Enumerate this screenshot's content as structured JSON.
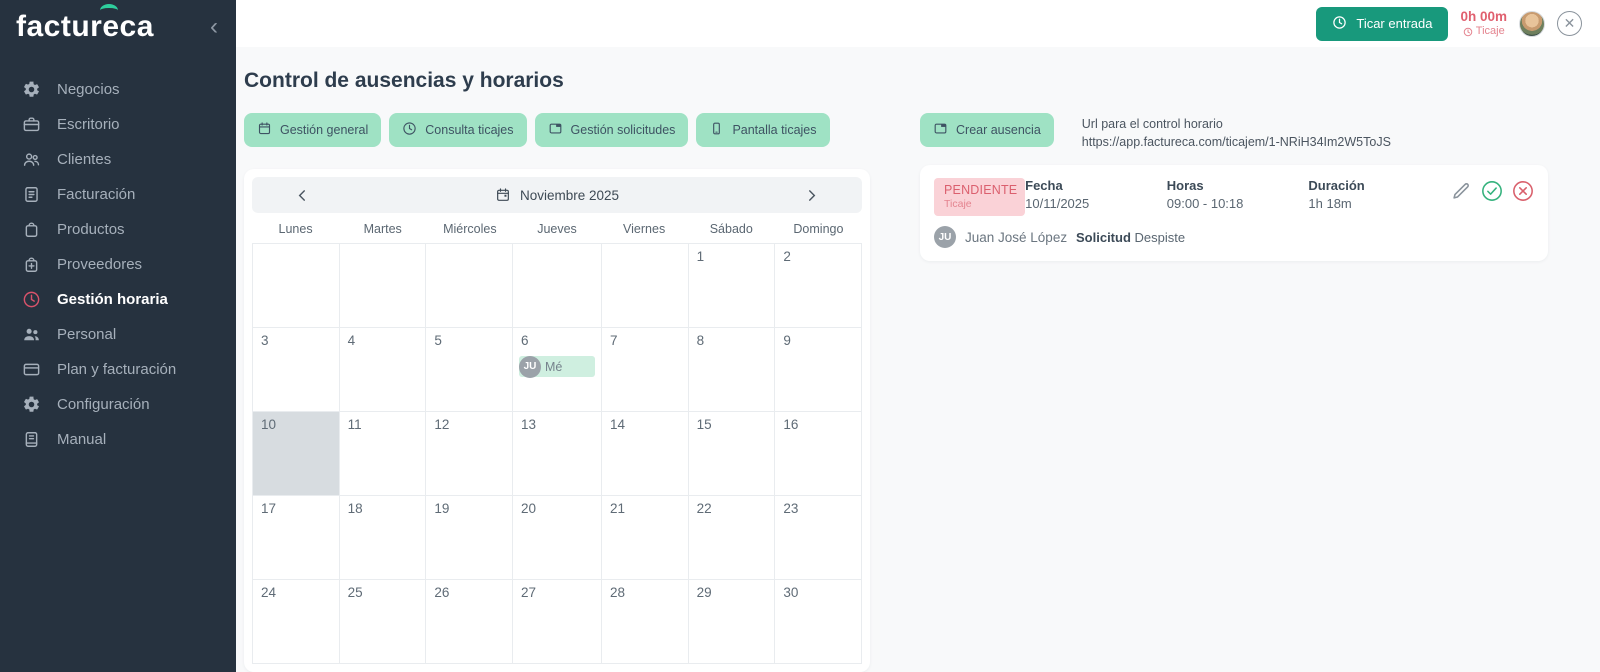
{
  "app": {
    "logo_part1": "factur",
    "logo_accent_letter": "e",
    "logo_part2": "ca"
  },
  "sidebar": {
    "items": [
      {
        "label": "Negocios",
        "icon": "gear-icon",
        "active": false
      },
      {
        "label": "Escritorio",
        "icon": "briefcase-icon",
        "active": false
      },
      {
        "label": "Clientes",
        "icon": "people-icon",
        "active": false
      },
      {
        "label": "Facturación",
        "icon": "invoice-icon",
        "active": false
      },
      {
        "label": "Productos",
        "icon": "bag-icon",
        "active": false
      },
      {
        "label": "Proveedores",
        "icon": "bag-plus-icon",
        "active": false
      },
      {
        "label": "Gestión horaria",
        "icon": "clock-icon",
        "active": true
      },
      {
        "label": "Personal",
        "icon": "people-filled-icon",
        "active": false
      },
      {
        "label": "Plan y facturación",
        "icon": "card-icon",
        "active": false
      },
      {
        "label": "Configuración",
        "icon": "gear-icon",
        "active": false
      },
      {
        "label": "Manual",
        "icon": "manual-icon",
        "active": false
      }
    ]
  },
  "header": {
    "clock_in_label": "Ticar entrada",
    "timer": "0h 00m",
    "timer_sub": "Ticaje"
  },
  "page": {
    "title": "Control de ausencias y horarios"
  },
  "tabs": {
    "items": [
      {
        "label": "Gestión general",
        "icon": "calendar-icon"
      },
      {
        "label": "Consulta ticajes",
        "icon": "clock-icon"
      },
      {
        "label": "Gestión solicitudes",
        "icon": "card-calendar-icon"
      },
      {
        "label": "Pantalla ticajes",
        "icon": "phone-icon"
      }
    ]
  },
  "calendar": {
    "month_label": "Noviembre 2025",
    "day_headers": [
      "Lunes",
      "Martes",
      "Miércoles",
      "Jueves",
      "Viernes",
      "Sábado",
      "Domingo"
    ],
    "weeks": [
      [
        "",
        "",
        "",
        "",
        "",
        "1",
        "2"
      ],
      [
        "3",
        "4",
        "5",
        "6",
        "7",
        "8",
        "9"
      ],
      [
        "10",
        "11",
        "12",
        "13",
        "14",
        "15",
        "16"
      ],
      [
        "17",
        "18",
        "19",
        "20",
        "21",
        "22",
        "23"
      ],
      [
        "24",
        "25",
        "26",
        "27",
        "28",
        "29",
        "30"
      ]
    ],
    "today": "10",
    "event": {
      "day": "6",
      "avatar_initials": "JU",
      "label": "Mé"
    }
  },
  "panel": {
    "create_label": "Crear ausencia",
    "url_title": "Url para el control horario",
    "url": "https://app.factureca.com/ticajem/1-NRiH34Im2W5ToJS"
  },
  "request": {
    "status": "PENDIENTE",
    "status_sub": "Ticaje",
    "fecha_label": "Fecha",
    "fecha": "10/11/2025",
    "horas_label": "Horas",
    "horas": "09:00 - 10:18",
    "duracion_label": "Duración",
    "duracion": "1h 18m",
    "user_initials": "JU",
    "user_name": "Juan José López",
    "solicitud_label": "Solicitud",
    "solicitud_value": "Despiste"
  },
  "icons": {
    "clock-icon": "clock face",
    "calendar-icon": "calendar",
    "card-calendar-icon": "card with header",
    "phone-icon": "smartphone",
    "gear-icon": "cog",
    "briefcase-icon": "briefcase",
    "people-icon": "two people outline",
    "people-filled-icon": "two people filled",
    "invoice-icon": "document with lines",
    "bag-icon": "shopping bag",
    "bag-plus-icon": "shopping bag with plus",
    "card-icon": "credit card",
    "manual-icon": "booklet",
    "chevron-left-icon": "‹",
    "chevron-right-icon": "›",
    "edit-icon": "pencil",
    "approve-icon": "check in circle",
    "reject-icon": "x in circle",
    "close-icon": "×",
    "collapse-icon": "‹"
  },
  "colors": {
    "sidebar_bg": "#26323F",
    "accent_green": "#2ECE9D",
    "mint": "#9FE2C4",
    "teal_button": "#18997C",
    "active_red": "#D9536B",
    "timer_red": "#E0606F",
    "badge_pink_bg": "#FAD2D7",
    "badge_pink_text": "#DB5F6E",
    "approve_green": "#35B27D",
    "reject_red": "#D9606C",
    "today_gray": "#D7DCE0",
    "event_mint": "#CFEFE0"
  }
}
